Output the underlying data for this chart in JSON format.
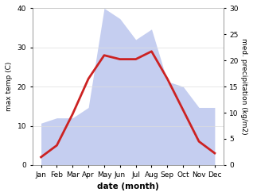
{
  "months": [
    "Jan",
    "Feb",
    "Mar",
    "Apr",
    "May",
    "Jun",
    "Jul",
    "Aug",
    "Sep",
    "Oct",
    "Nov",
    "Dec"
  ],
  "temp_c": [
    2,
    5,
    13,
    22,
    28,
    27,
    27,
    29,
    22,
    14,
    6,
    3
  ],
  "precip_kg": [
    8,
    9,
    9,
    11,
    30,
    28,
    24,
    26,
    16,
    15,
    11,
    11
  ],
  "temp_color": "#cc2222",
  "precip_fill_color": "#c5cef0",
  "temp_ylim": [
    0,
    40
  ],
  "precip_ylim": [
    0,
    30
  ],
  "temp_yticks": [
    0,
    10,
    20,
    30,
    40
  ],
  "precip_yticks": [
    0,
    5,
    10,
    15,
    20,
    25,
    30
  ],
  "ylabel_left": "max temp (C)",
  "ylabel_right": "med. precipitation (kg/m2)",
  "xlabel": "date (month)",
  "background_color": "#ffffff",
  "fig_width": 3.18,
  "fig_height": 2.47,
  "temp_linewidth": 2.0
}
